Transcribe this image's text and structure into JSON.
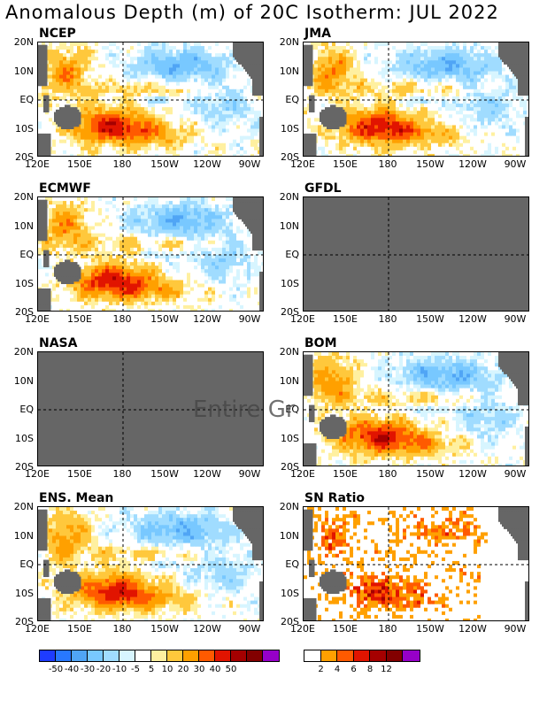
{
  "title": "Anomalous Depth (m) of 20C Isotherm: JUL 2022",
  "watermark": "Entire Gr",
  "chart_data": {
    "type": "heatmap",
    "lat_ticks": [
      "20N",
      "10N",
      "EQ",
      "10S",
      "20S"
    ],
    "lon_ticks": [
      "120E",
      "150E",
      "180",
      "150W",
      "120W",
      "90W"
    ],
    "lat_range": [
      -20,
      20
    ],
    "lon_range": [
      120,
      280
    ],
    "panels": [
      {
        "key": "ncep",
        "name": "NCEP",
        "status": "data",
        "field": "anomaly"
      },
      {
        "key": "jma",
        "name": "JMA",
        "status": "data",
        "field": "anomaly"
      },
      {
        "key": "ecmwf",
        "name": "ECMWF",
        "status": "data",
        "field": "anomaly"
      },
      {
        "key": "gfdl",
        "name": "GFDL",
        "status": "missing",
        "field": "anomaly"
      },
      {
        "key": "nasa",
        "name": "NASA",
        "status": "missing",
        "field": "anomaly"
      },
      {
        "key": "bom",
        "name": "BOM",
        "status": "data",
        "field": "anomaly"
      },
      {
        "key": "ens",
        "name": "ENS. Mean",
        "status": "data",
        "field": "anomaly"
      },
      {
        "key": "sn",
        "name": "SN Ratio",
        "status": "data",
        "field": "snr"
      }
    ],
    "colorbars": [
      {
        "key": "anomaly",
        "labels": [
          "-50",
          "-40",
          "-30",
          "-20",
          "-10",
          "-5",
          "5",
          "10",
          "20",
          "30",
          "40",
          "50"
        ],
        "colors": [
          "#1e3cff",
          "#2878ff",
          "#50a5f5",
          "#78c8ff",
          "#a0dcff",
          "#d7f5ff",
          "#ffffff",
          "#fff0a0",
          "#ffc83c",
          "#ffa000",
          "#ff5a00",
          "#e11400",
          "#a50000",
          "#820000",
          "#9600c8"
        ]
      },
      {
        "key": "snr",
        "labels": [
          "2",
          "4",
          "6",
          "8",
          "12"
        ],
        "colors": [
          "#ffffff",
          "#ffa000",
          "#ff5a00",
          "#e11400",
          "#a50000",
          "#820000",
          "#9600c8"
        ]
      }
    ]
  }
}
